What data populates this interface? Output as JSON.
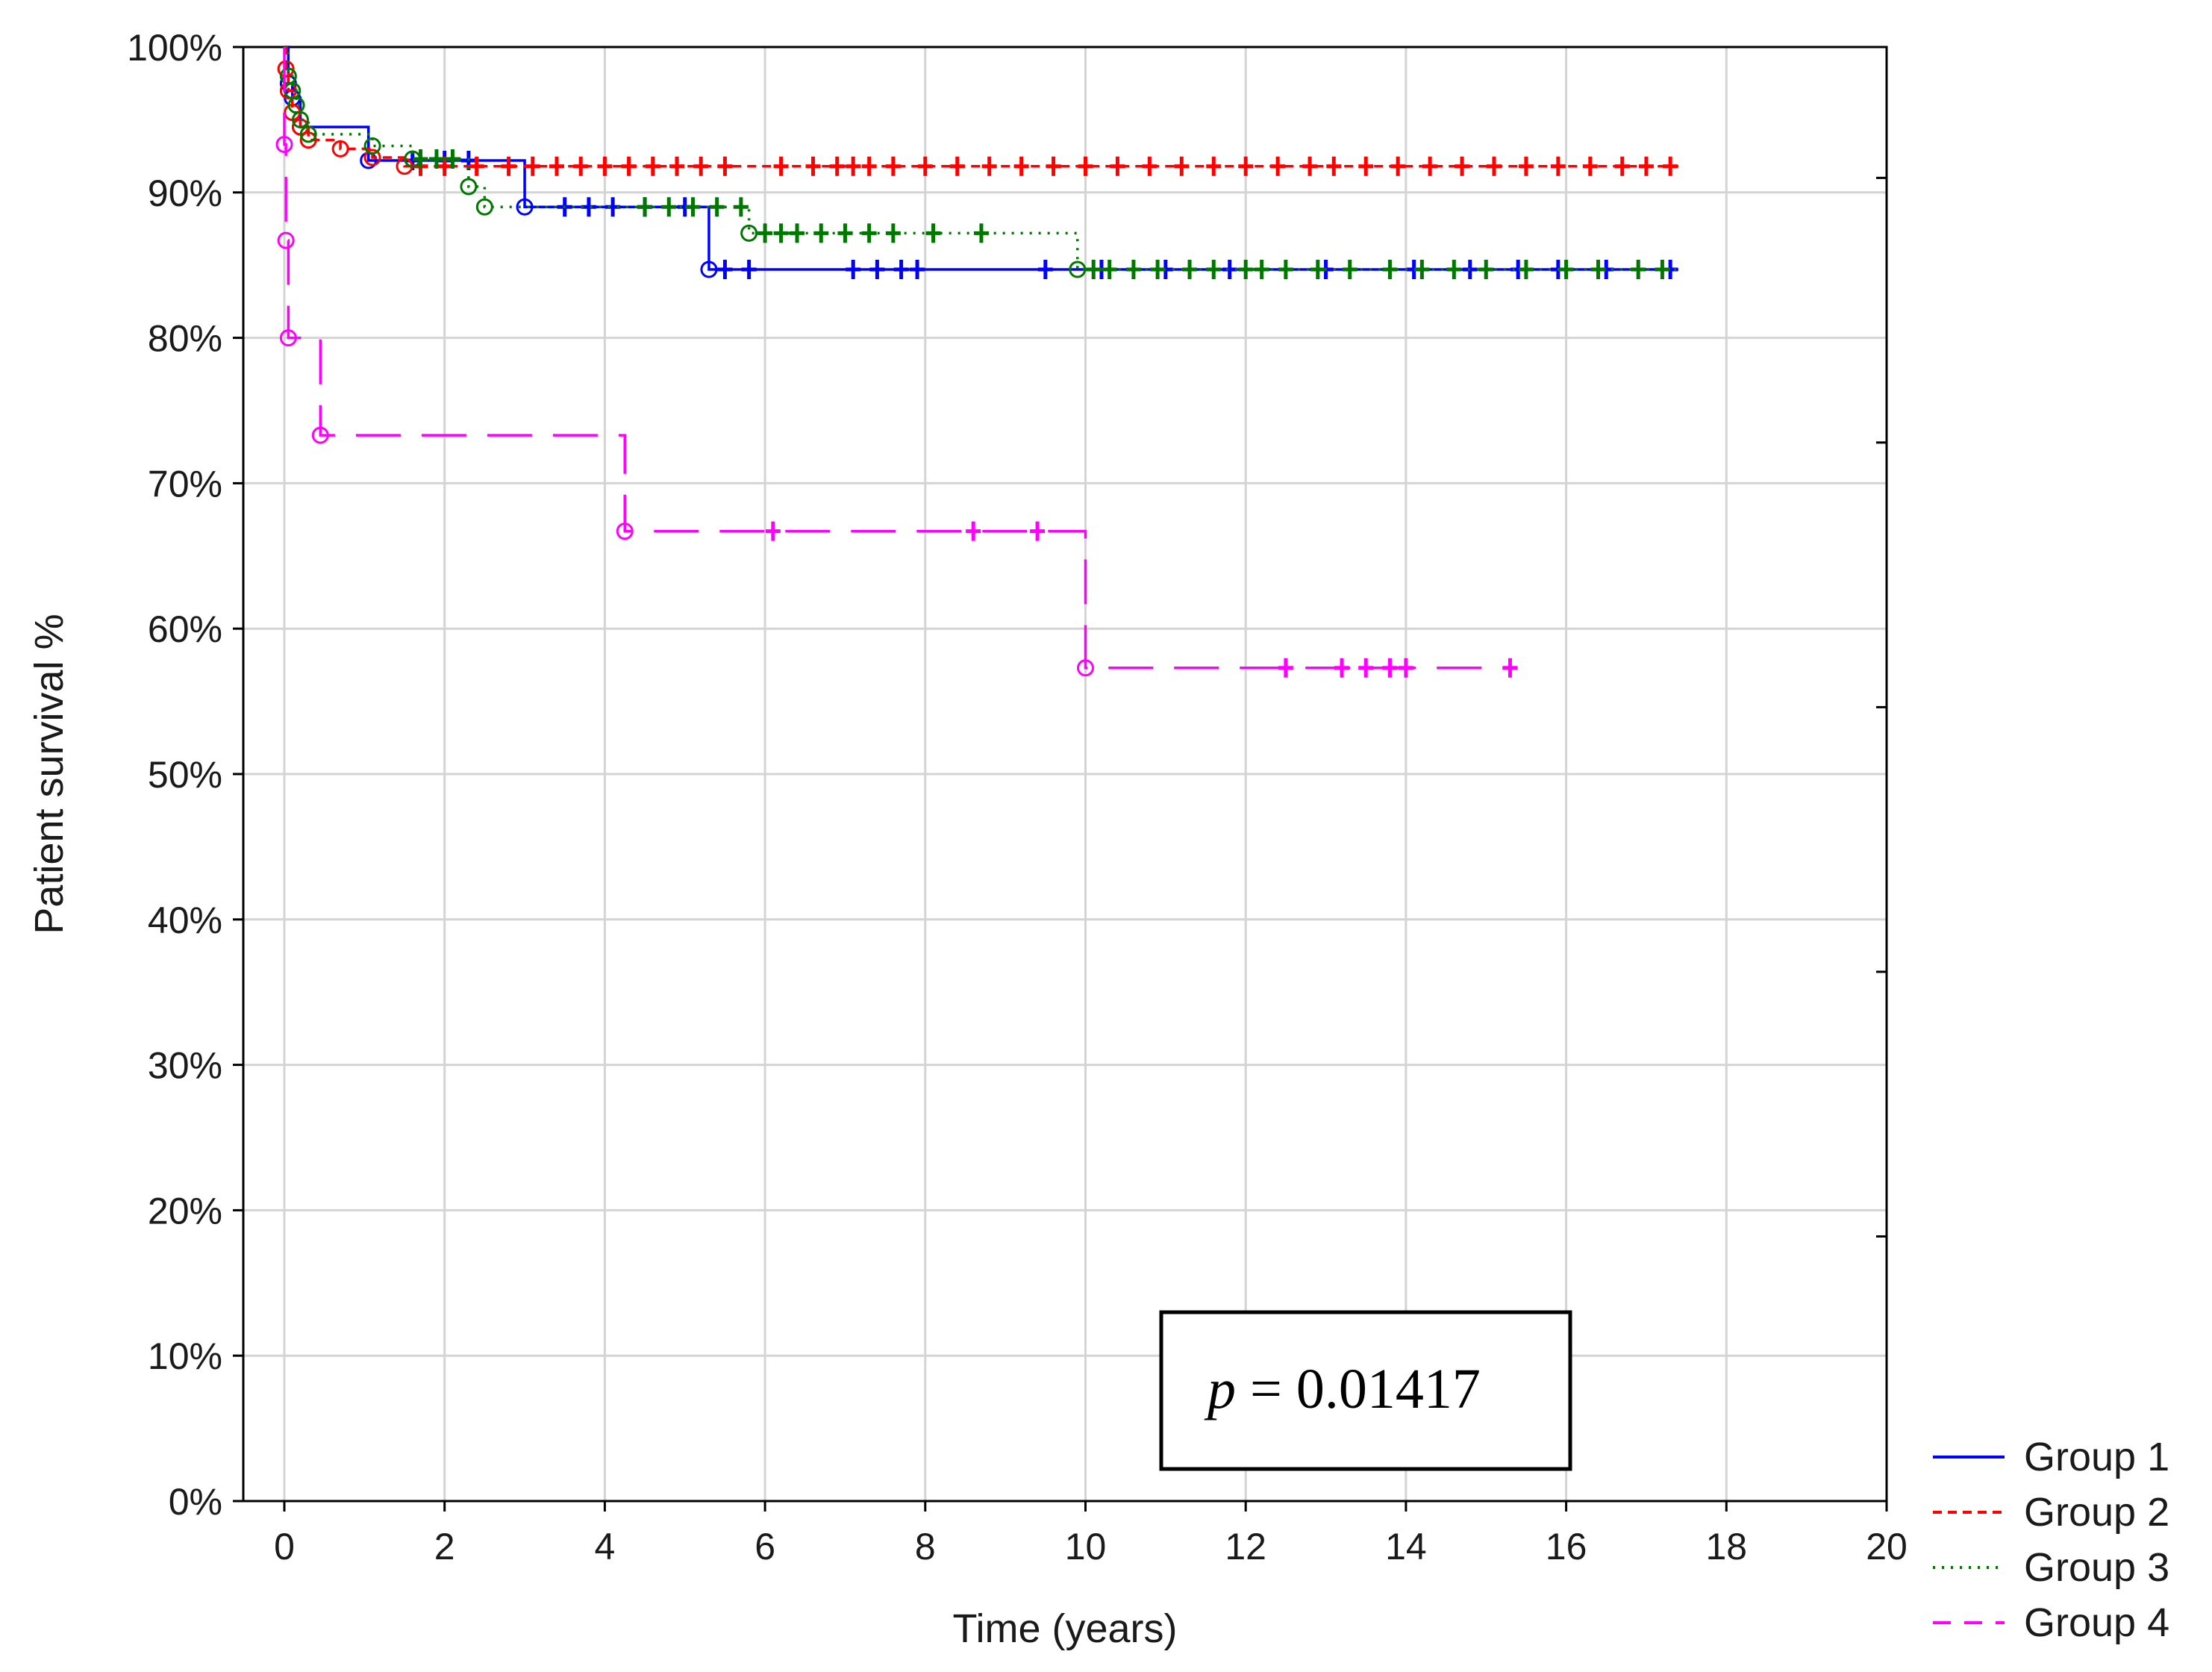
{
  "chart_data": {
    "type": "line",
    "subtype": "kaplan-meier",
    "title": "",
    "xlabel": "Time (years)",
    "ylabel": "Patient survival %",
    "xlim": [
      0,
      20
    ],
    "ylim": [
      0,
      100
    ],
    "xticks": [
      0,
      2,
      4,
      6,
      8,
      10,
      12,
      14,
      16,
      18,
      20
    ],
    "xtick_labels": [
      "0",
      "2",
      "4",
      "6",
      "8",
      "10",
      "12",
      "14",
      "16",
      "18",
      "20"
    ],
    "yticks": [
      0,
      10,
      20,
      30,
      40,
      50,
      60,
      70,
      80,
      90,
      100
    ],
    "ytick_labels": [
      "0%",
      "10%",
      "20%",
      "30%",
      "40%",
      "50%",
      "60%",
      "70%",
      "80%",
      "90%",
      "100%"
    ],
    "grid": true,
    "legend_position": "bottom-right outside",
    "annotation": {
      "p_symbol": "p",
      "text": " = 0.01417"
    },
    "series": [
      {
        "name": "Group 1",
        "color": "#0000ff",
        "dash": "solid",
        "steps": [
          [
            0,
            100
          ],
          [
            0.05,
            97.5
          ],
          [
            0.1,
            96.5
          ],
          [
            0.2,
            94.5
          ],
          [
            1.05,
            92.2
          ],
          [
            3.0,
            89.0
          ],
          [
            5.3,
            84.7
          ],
          [
            17.4,
            84.7
          ]
        ],
        "events": [
          [
            0.05,
            97.5
          ],
          [
            0.1,
            96.5
          ],
          [
            0.2,
            94.5
          ],
          [
            1.05,
            92.2
          ],
          [
            3.0,
            89.0
          ],
          [
            5.3,
            84.7
          ]
        ],
        "censored": [
          [
            1.6,
            92.2
          ],
          [
            2.0,
            92.2
          ],
          [
            2.3,
            92.2
          ],
          [
            3.5,
            89.0
          ],
          [
            3.8,
            89.0
          ],
          [
            4.1,
            89.0
          ],
          [
            4.5,
            89.0
          ],
          [
            5.0,
            89.0
          ],
          [
            5.5,
            84.7
          ],
          [
            5.8,
            84.7
          ],
          [
            7.1,
            84.7
          ],
          [
            7.4,
            84.7
          ],
          [
            7.7,
            84.7
          ],
          [
            7.9,
            84.7
          ],
          [
            9.5,
            84.7
          ],
          [
            10.2,
            84.7
          ],
          [
            11.0,
            84.7
          ],
          [
            11.8,
            84.7
          ],
          [
            13.0,
            84.7
          ],
          [
            14.1,
            84.7
          ],
          [
            14.8,
            84.7
          ],
          [
            15.4,
            84.7
          ],
          [
            15.9,
            84.7
          ],
          [
            16.5,
            84.7
          ],
          [
            17.3,
            84.7
          ]
        ]
      },
      {
        "name": "Group 2",
        "color": "#ff0000",
        "dash": "short-dash",
        "steps": [
          [
            0,
            100
          ],
          [
            0.02,
            98.5
          ],
          [
            0.05,
            97.0
          ],
          [
            0.1,
            95.5
          ],
          [
            0.2,
            94.5
          ],
          [
            0.3,
            93.6
          ],
          [
            0.7,
            93.0
          ],
          [
            1.1,
            92.4
          ],
          [
            1.5,
            91.8
          ],
          [
            17.4,
            91.8
          ]
        ],
        "events": [
          [
            0.02,
            98.5
          ],
          [
            0.05,
            97.0
          ],
          [
            0.1,
            95.5
          ],
          [
            0.2,
            94.5
          ],
          [
            0.3,
            93.6
          ],
          [
            0.7,
            93.0
          ],
          [
            1.1,
            92.4
          ],
          [
            1.5,
            91.8
          ]
        ],
        "censored": [
          [
            1.7,
            91.8
          ],
          [
            2.0,
            91.8
          ],
          [
            2.4,
            91.8
          ],
          [
            2.8,
            91.8
          ],
          [
            3.1,
            91.8
          ],
          [
            3.4,
            91.8
          ],
          [
            3.7,
            91.8
          ],
          [
            4.0,
            91.8
          ],
          [
            4.3,
            91.8
          ],
          [
            4.6,
            91.8
          ],
          [
            4.9,
            91.8
          ],
          [
            5.2,
            91.8
          ],
          [
            5.5,
            91.8
          ],
          [
            6.2,
            91.8
          ],
          [
            6.6,
            91.8
          ],
          [
            6.9,
            91.8
          ],
          [
            7.1,
            91.8
          ],
          [
            7.3,
            91.8
          ],
          [
            7.6,
            91.8
          ],
          [
            8.0,
            91.8
          ],
          [
            8.4,
            91.8
          ],
          [
            8.8,
            91.8
          ],
          [
            9.2,
            91.8
          ],
          [
            9.6,
            91.8
          ],
          [
            10.0,
            91.8
          ],
          [
            10.4,
            91.8
          ],
          [
            10.8,
            91.8
          ],
          [
            11.2,
            91.8
          ],
          [
            11.6,
            91.8
          ],
          [
            12.0,
            91.8
          ],
          [
            12.4,
            91.8
          ],
          [
            12.8,
            91.8
          ],
          [
            13.1,
            91.8
          ],
          [
            13.5,
            91.8
          ],
          [
            13.9,
            91.8
          ],
          [
            14.3,
            91.8
          ],
          [
            14.7,
            91.8
          ],
          [
            15.1,
            91.8
          ],
          [
            15.5,
            91.8
          ],
          [
            15.9,
            91.8
          ],
          [
            16.3,
            91.8
          ],
          [
            16.7,
            91.8
          ],
          [
            17.0,
            91.8
          ],
          [
            17.3,
            91.8
          ]
        ]
      },
      {
        "name": "Group 3",
        "color": "#007700",
        "dash": "dotted",
        "steps": [
          [
            0,
            100
          ],
          [
            0.05,
            98.0
          ],
          [
            0.1,
            97.0
          ],
          [
            0.15,
            96.0
          ],
          [
            0.2,
            95.0
          ],
          [
            0.3,
            94.0
          ],
          [
            1.1,
            93.2
          ],
          [
            1.6,
            92.3
          ],
          [
            2.3,
            90.4
          ],
          [
            2.5,
            89.0
          ],
          [
            5.8,
            87.2
          ],
          [
            9.9,
            84.7
          ],
          [
            17.4,
            84.7
          ]
        ],
        "events": [
          [
            0.05,
            98.0
          ],
          [
            0.1,
            97.0
          ],
          [
            0.15,
            96.0
          ],
          [
            0.2,
            95.0
          ],
          [
            0.3,
            94.0
          ],
          [
            1.1,
            93.2
          ],
          [
            1.6,
            92.3
          ],
          [
            2.3,
            90.4
          ],
          [
            2.5,
            89.0
          ],
          [
            5.8,
            87.2
          ],
          [
            9.9,
            84.7
          ]
        ],
        "censored": [
          [
            1.7,
            92.3
          ],
          [
            1.9,
            92.3
          ],
          [
            2.1,
            92.3
          ],
          [
            4.5,
            89.0
          ],
          [
            4.8,
            89.0
          ],
          [
            5.1,
            89.0
          ],
          [
            5.4,
            89.0
          ],
          [
            5.7,
            89.0
          ],
          [
            6.0,
            87.2
          ],
          [
            6.2,
            87.2
          ],
          [
            6.4,
            87.2
          ],
          [
            6.7,
            87.2
          ],
          [
            7.0,
            87.2
          ],
          [
            7.3,
            87.2
          ],
          [
            7.6,
            87.2
          ],
          [
            8.1,
            87.2
          ],
          [
            8.7,
            87.2
          ],
          [
            10.1,
            84.7
          ],
          [
            10.3,
            84.7
          ],
          [
            10.6,
            84.7
          ],
          [
            10.9,
            84.7
          ],
          [
            11.3,
            84.7
          ],
          [
            11.6,
            84.7
          ],
          [
            12.0,
            84.7
          ],
          [
            12.2,
            84.7
          ],
          [
            12.5,
            84.7
          ],
          [
            12.9,
            84.7
          ],
          [
            13.3,
            84.7
          ],
          [
            13.8,
            84.7
          ],
          [
            14.2,
            84.7
          ],
          [
            14.6,
            84.7
          ],
          [
            15.0,
            84.7
          ],
          [
            15.5,
            84.7
          ],
          [
            16.0,
            84.7
          ],
          [
            16.4,
            84.7
          ],
          [
            16.9,
            84.7
          ],
          [
            17.2,
            84.7
          ]
        ]
      },
      {
        "name": "Group 4",
        "color": "#ff00ff",
        "dash": "long-dash",
        "steps": [
          [
            0,
            100
          ],
          [
            0.0,
            93.3
          ],
          [
            0.02,
            86.7
          ],
          [
            0.05,
            80.0
          ],
          [
            0.45,
            73.3
          ],
          [
            4.25,
            66.7
          ],
          [
            10.0,
            57.3
          ],
          [
            15.3,
            57.3
          ]
        ],
        "events": [
          [
            0.0,
            93.3
          ],
          [
            0.02,
            86.7
          ],
          [
            0.05,
            80.0
          ],
          [
            0.45,
            73.3
          ],
          [
            4.25,
            66.7
          ],
          [
            10.0,
            57.3
          ]
        ],
        "censored": [
          [
            6.1,
            66.7
          ],
          [
            8.6,
            66.7
          ],
          [
            9.4,
            66.7
          ],
          [
            12.5,
            57.3
          ],
          [
            13.2,
            57.3
          ],
          [
            13.5,
            57.3
          ],
          [
            13.8,
            57.3
          ],
          [
            14.0,
            57.3
          ],
          [
            15.3,
            57.3
          ]
        ]
      }
    ]
  }
}
